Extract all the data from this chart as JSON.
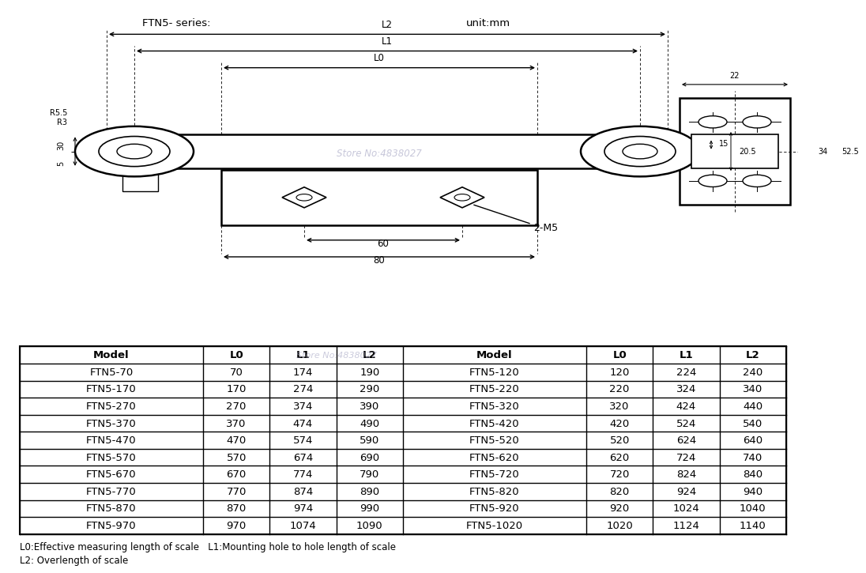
{
  "title_left": "FTN5- series:",
  "title_right": "unit:mm",
  "watermark": "Store No:4838027",
  "table_headers": [
    "Model",
    "L0",
    "L1",
    "L2",
    "Model",
    "L0",
    "L1",
    "L2"
  ],
  "table_data": [
    [
      "FTN5-70",
      "70",
      "174",
      "190",
      "FTN5-120",
      "120",
      "224",
      "240"
    ],
    [
      "FTN5-170",
      "170",
      "274",
      "290",
      "FTN5-220",
      "220",
      "324",
      "340"
    ],
    [
      "FTN5-270",
      "270",
      "374",
      "390",
      "FTN5-320",
      "320",
      "424",
      "440"
    ],
    [
      "FTN5-370",
      "370",
      "474",
      "490",
      "FTN5-420",
      "420",
      "524",
      "540"
    ],
    [
      "FTN5-470",
      "470",
      "574",
      "590",
      "FTN5-520",
      "520",
      "624",
      "640"
    ],
    [
      "FTN5-570",
      "570",
      "674",
      "690",
      "FTN5-620",
      "620",
      "724",
      "740"
    ],
    [
      "FTN5-670",
      "670",
      "774",
      "790",
      "FTN5-720",
      "720",
      "824",
      "840"
    ],
    [
      "FTN5-770",
      "770",
      "874",
      "890",
      "FTN5-820",
      "820",
      "924",
      "940"
    ],
    [
      "FTN5-870",
      "870",
      "974",
      "990",
      "FTN5-920",
      "920",
      "1024",
      "1040"
    ],
    [
      "FTN5-970",
      "970",
      "1074",
      "1090",
      "FTN5-1020",
      "1020",
      "1124",
      "1140"
    ]
  ],
  "footnote1": "L0:Effective measuring length of scale   L1:Mounting hole to hole length of scale",
  "footnote2": "L2: Overlength of scale",
  "bg_color": "#ffffff",
  "line_color": "#000000",
  "text_color": "#000000",
  "watermark_color": "#9999bb"
}
